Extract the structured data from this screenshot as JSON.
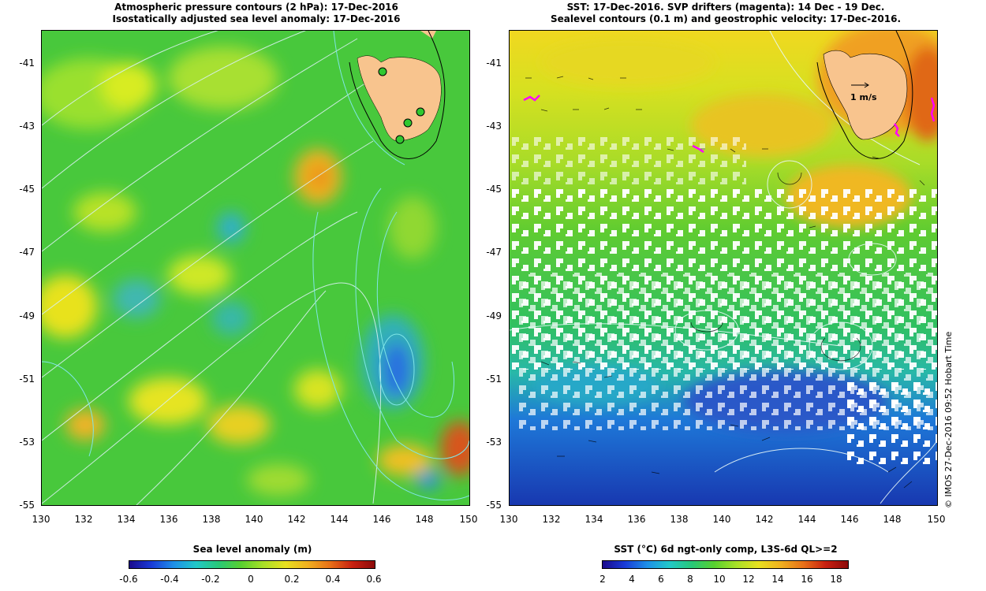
{
  "left": {
    "title_line1": "Atmospheric pressure contours (2 hPa): 17-Dec-2016",
    "title_line2": "Isostatically adjusted sea level anomaly: 17-Dec-2016",
    "y_ticks": [
      "-41",
      "-43",
      "-45",
      "-47",
      "-49",
      "-51",
      "-53",
      "-55"
    ],
    "x_ticks": [
      "130",
      "132",
      "134",
      "136",
      "138",
      "140",
      "142",
      "144",
      "146",
      "148",
      "150"
    ],
    "colorbar_title": "Sea level anomaly (m)",
    "colorbar_ticks": [
      "-0.6",
      "-0.4",
      "-0.2",
      "0",
      "0.2",
      "0.4",
      "0.6"
    ],
    "colors": {
      "land": "#f8c48e",
      "contour": "#7fe6e6",
      "pressure": "#d8f0f0"
    }
  },
  "right": {
    "title_line1": "SST: 17-Dec-2016. SVP drifters (magenta): 14 Dec - 19 Dec.",
    "title_line2": "Sealevel contours (0.1 m) and geostrophic velocity: 17-Dec-2016.",
    "y_ticks": [
      "-41",
      "-43",
      "-45",
      "-47",
      "-49",
      "-51",
      "-53",
      "-55"
    ],
    "x_ticks": [
      "130",
      "132",
      "134",
      "136",
      "138",
      "140",
      "142",
      "144",
      "146",
      "148",
      "150"
    ],
    "velocity_label": "1 m/s",
    "colorbar_title": "SST (°C) 6d ngt-only comp, L3S-6d QL>=2",
    "colorbar_ticks": [
      "2",
      "4",
      "6",
      "8",
      "10",
      "12",
      "14",
      "16",
      "18"
    ],
    "colors": {
      "land": "#f8c48e",
      "drifter": "#ff00ff"
    }
  },
  "side_label": "© IMOS 27-Dec-2016 09:52 Hobart Time"
}
